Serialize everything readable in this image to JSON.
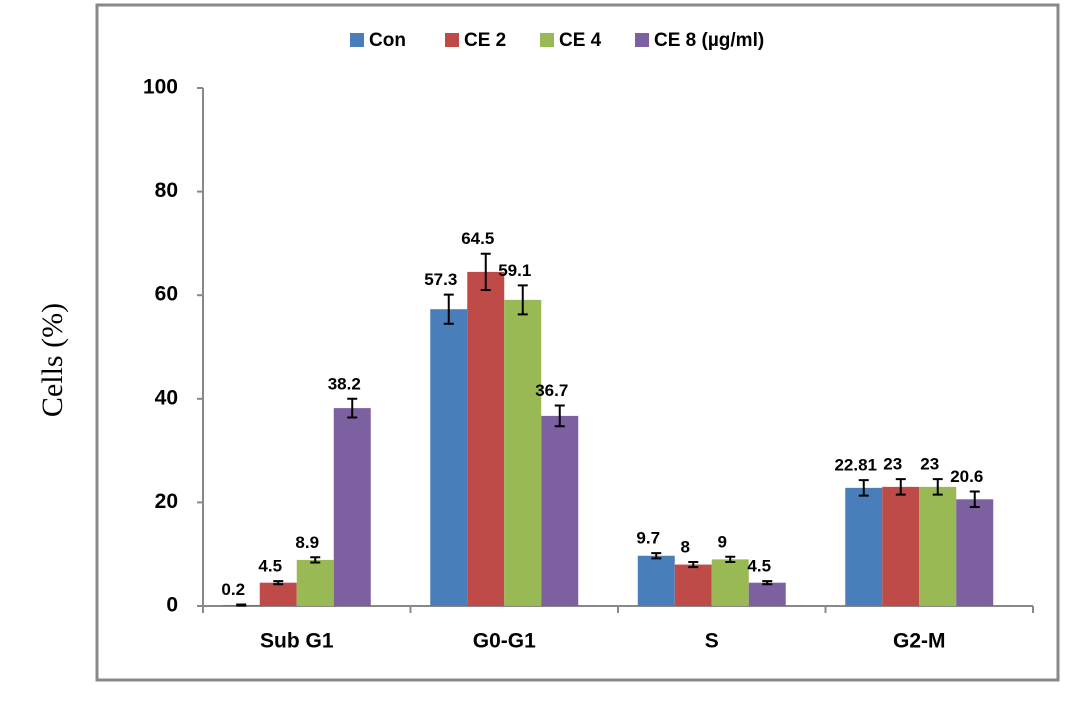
{
  "chart_data": {
    "type": "bar",
    "y_label": "Cells (%)",
    "categories": [
      "Sub G1",
      "G0-G1",
      "S",
      "G2-M"
    ],
    "series": [
      {
        "name": "Con",
        "color": "#4a7ebb",
        "values": [
          0.2,
          57.3,
          9.7,
          22.81
        ],
        "errors": [
          0.1,
          2.8,
          0.5,
          1.5
        ]
      },
      {
        "name": "CE 2",
        "color": "#be4b48",
        "values": [
          4.5,
          64.5,
          8,
          23
        ],
        "errors": [
          0.3,
          3.5,
          0.5,
          1.5
        ]
      },
      {
        "name": "CE 4",
        "color": "#98b954",
        "values": [
          8.9,
          59.1,
          9,
          23
        ],
        "errors": [
          0.5,
          2.8,
          0.5,
          1.5
        ]
      },
      {
        "name": "CE 8 (µg/ml)",
        "color": "#7d60a0",
        "values": [
          38.2,
          36.7,
          4.5,
          20.6
        ],
        "errors": [
          1.8,
          2.0,
          0.3,
          1.5
        ]
      }
    ],
    "ylim": [
      0,
      100
    ],
    "yticks": [
      0,
      20,
      40,
      60,
      80,
      100
    ],
    "legend": "top"
  }
}
